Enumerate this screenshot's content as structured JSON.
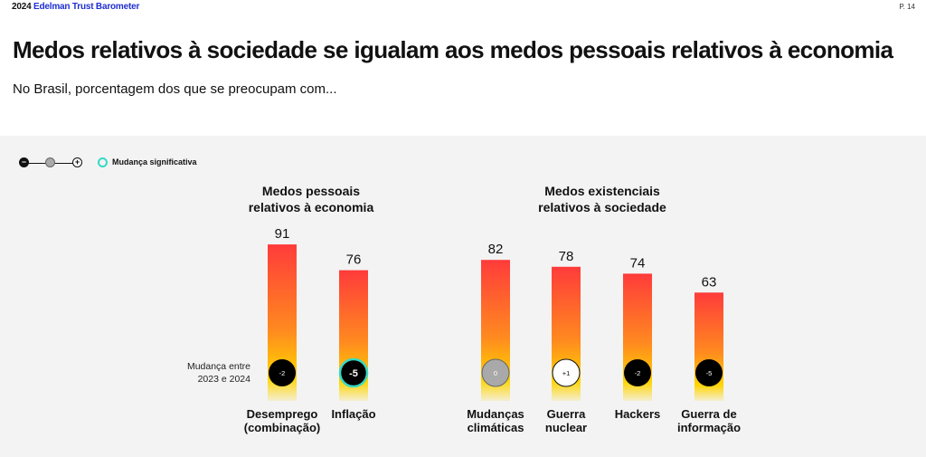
{
  "header": {
    "brand_year": "2024",
    "brand_name": "Edelman Trust Barometer",
    "page_number": "P. 14"
  },
  "title": "Medos relativos à sociedade se igualam aos medos pessoais relativos à economia",
  "subtitle": "No Brasil, porcentagem dos que se preocupam com...",
  "legend": {
    "scale_minus": "−",
    "scale_plus": "+",
    "significant_label": "Mudança significativa"
  },
  "change_label": [
    "Mudança entre",
    "2023 e 2024"
  ],
  "colors": {
    "bar_top": "#ff3b3b",
    "bar_mid": "#ff8a1f",
    "bar_bottom": "#ffd400",
    "significant_ring": "#37d9c6",
    "panel_bg": "#f3f3f3",
    "brand_blue": "#1f2fd1"
  },
  "chart_data": {
    "type": "bar",
    "ylim": [
      0,
      100
    ],
    "groups": [
      {
        "title_lines": [
          "Medos pessoais",
          "relativos à economia"
        ],
        "items": [
          {
            "label_lines": [
              "Desemprego",
              "(combinação)"
            ],
            "value": 91,
            "change": -2,
            "significant": false
          },
          {
            "label_lines": [
              "Inflação"
            ],
            "value": 76,
            "change": -5,
            "significant": true
          }
        ]
      },
      {
        "title_lines": [
          "Medos existenciais",
          "relativos à sociedade"
        ],
        "items": [
          {
            "label_lines": [
              "Mudanças",
              "climáticas"
            ],
            "value": 82,
            "change": 0,
            "significant": false
          },
          {
            "label_lines": [
              "Guerra",
              "nuclear"
            ],
            "value": 78,
            "change": 1,
            "significant": false
          },
          {
            "label_lines": [
              "Hackers"
            ],
            "value": 74,
            "change": -2,
            "significant": false
          },
          {
            "label_lines": [
              "Guerra de",
              "informação"
            ],
            "value": 63,
            "change": -5,
            "significant": false
          }
        ]
      }
    ]
  }
}
